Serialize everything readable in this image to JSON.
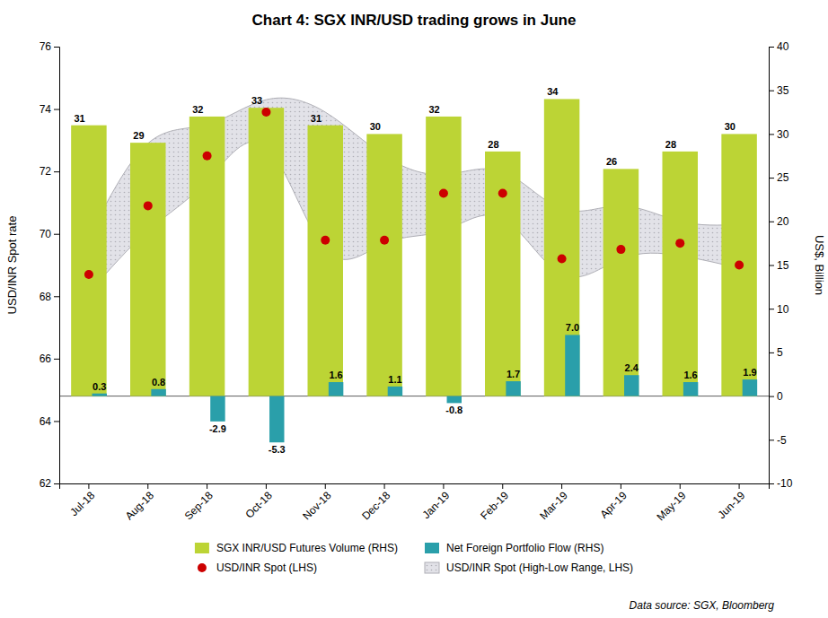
{
  "chart_data": {
    "type": "bar",
    "title": "Chart 4: SGX INR/USD trading grows in June",
    "categories": [
      "Jul-18",
      "Aug-18",
      "Sep-18",
      "Oct-18",
      "Nov-18",
      "Dec-18",
      "Jan-19",
      "Feb-19",
      "Mar-19",
      "Apr-19",
      "May-19",
      "Jun-19"
    ],
    "ylabel": "USD/INR Spot rate",
    "y2label": "US$, Billion",
    "ylim": [
      62,
      76
    ],
    "yticks": [
      62,
      64,
      66,
      68,
      70,
      72,
      74,
      76
    ],
    "y2lim": [
      -10,
      40
    ],
    "y2ticks": [
      -10,
      -5,
      0,
      5,
      10,
      15,
      20,
      25,
      30,
      35,
      40
    ],
    "legend": "bottom",
    "source": "Data source: SGX, Bloomberg",
    "series": [
      {
        "name": "SGX INR/USD Futures Volume (RHS)",
        "type": "bar",
        "axis": "y2",
        "color": "#bcd435",
        "data_labels": true,
        "values": [
          31,
          29,
          32,
          33,
          31,
          30,
          32,
          28,
          34,
          26,
          28,
          30
        ]
      },
      {
        "name": "Net Foreign Portfolio Flow (RHS)",
        "type": "bar",
        "axis": "y2",
        "color": "#2a9faa",
        "data_labels": true,
        "values": [
          0.3,
          0.8,
          -2.9,
          -5.3,
          1.6,
          1.1,
          -0.8,
          1.7,
          7.0,
          2.4,
          1.6,
          1.9
        ],
        "value_labels": [
          "0.3",
          "0.8",
          "-2.9",
          "-5.3",
          "1.6",
          "1.1",
          "-0.8",
          "1.7",
          "7.0",
          "2.4",
          "1.6",
          "1.9"
        ]
      },
      {
        "name": "USD/INR Spot (LHS)",
        "type": "scatter",
        "color": "#cc0000",
        "marker": "circle",
        "values": [
          68.7,
          70.9,
          72.5,
          73.9,
          69.8,
          69.8,
          71.3,
          71.3,
          69.2,
          69.5,
          69.7,
          69.0
        ]
      },
      {
        "name": "USD/INR Spot (High-Low Range, LHS)",
        "type": "area",
        "color": "#d8d8e0",
        "high": [
          69.9,
          72.9,
          73.5,
          74.3,
          73.9,
          72.5,
          71.9,
          72.0,
          70.8,
          70.9,
          70.4,
          70.3
        ],
        "low": [
          68.1,
          70.1,
          71.7,
          72.8,
          69.5,
          69.7,
          70.1,
          70.5,
          68.7,
          69.2,
          69.3,
          68.9
        ]
      }
    ]
  }
}
